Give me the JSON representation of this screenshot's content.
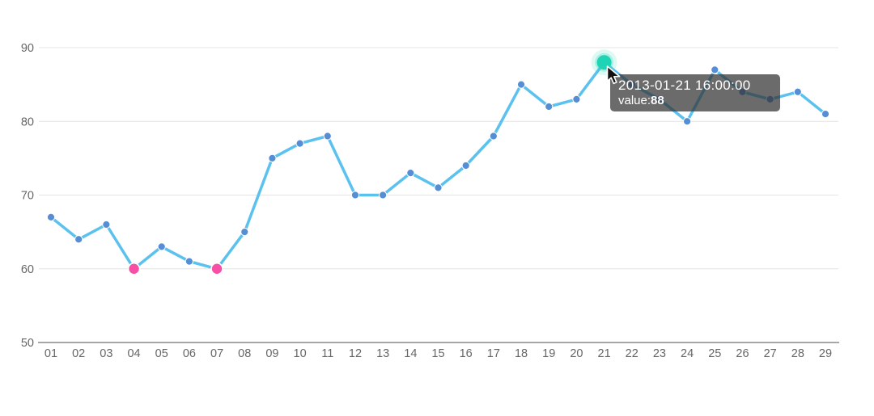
{
  "chart_data": {
    "type": "line",
    "title": "",
    "xlabel": "",
    "ylabel": "",
    "categories": [
      "01",
      "02",
      "03",
      "04",
      "05",
      "06",
      "07",
      "08",
      "09",
      "10",
      "11",
      "12",
      "13",
      "14",
      "15",
      "16",
      "17",
      "18",
      "19",
      "20",
      "21",
      "22",
      "23",
      "24",
      "25",
      "26",
      "27",
      "28",
      "29"
    ],
    "values": [
      67,
      64,
      66,
      60,
      63,
      61,
      60,
      65,
      75,
      77,
      78,
      70,
      70,
      73,
      71,
      74,
      78,
      85,
      82,
      83,
      88,
      85,
      83,
      80,
      87,
      84,
      83,
      84,
      81
    ],
    "ylim": [
      50,
      90
    ],
    "yticks": [
      50,
      60,
      70,
      80,
      90
    ],
    "grid": true,
    "legend_position": "none",
    "highlight": {
      "index": 20,
      "category": "21",
      "value": 88
    },
    "min_markers": {
      "indices": [
        3,
        6
      ],
      "value": 60
    }
  },
  "tooltip": {
    "datetime": "2013-01-21 16:00:00",
    "value_label": "value:",
    "value": "88"
  },
  "colors": {
    "line": "#5bc1ee",
    "point": "#568ed6",
    "point_border": "#ffffff",
    "min_marker": "#f64fa5",
    "highlight": "#1ed4b5",
    "highlight_glow_outer": "rgba(30,212,181,0.15)",
    "highlight_glow_inner": "rgba(30,212,181,0.25)",
    "grid_line": "#e4e4e4",
    "axis_line": "#999999",
    "axis_label": "#666666",
    "tooltip_bg": "rgba(50,50,50,0.72)",
    "tooltip_text": "#ffffff",
    "cursor_fill": "#111111",
    "cursor_border": "#ffffff"
  }
}
